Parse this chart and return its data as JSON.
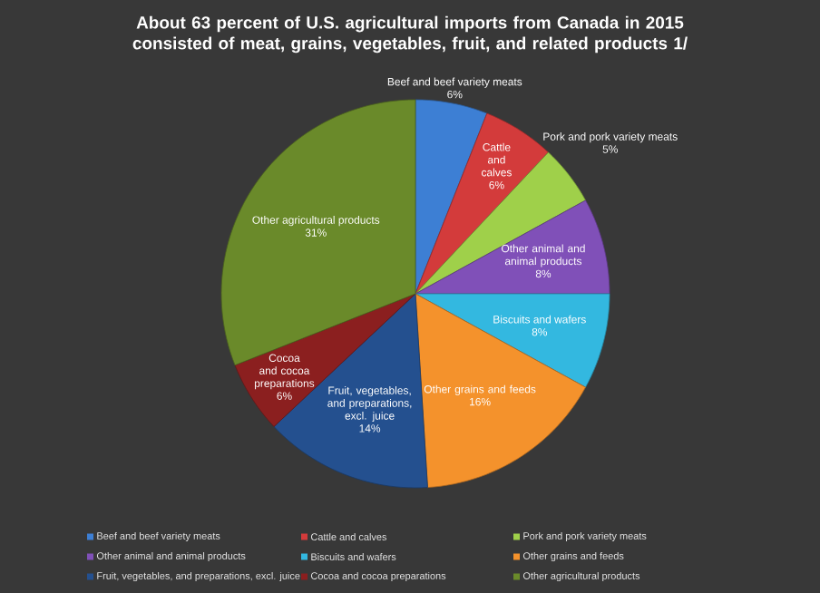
{
  "chart_data": {
    "type": "pie",
    "title": "About 63 percent of U.S. agricultural imports from Canada in 2015 consisted of meat, grains, vegetables, fruit, and related products 1/",
    "categories": [
      "Beef and beef variety meats",
      "Cattle and calves",
      "Pork and pork variety meats",
      "Other animal and animal products",
      "Biscuits and wafers",
      "Other grains and feeds",
      "Fruit, vegetables, and preparations, excl. juice",
      "Cocoa and cocoa preparations",
      "Other agricultural products"
    ],
    "values": [
      6,
      6,
      5,
      8,
      8,
      16,
      14,
      6,
      31
    ],
    "value_labels": [
      "6%",
      "6%",
      "5%",
      "8%",
      "8%",
      "16%",
      "14%",
      "6%",
      "31%"
    ],
    "colors": [
      "#3d7fd4",
      "#d33b3b",
      "#9fd04a",
      "#8050b8",
      "#33b8e0",
      "#f4922c",
      "#24508f",
      "#8b1f1f",
      "#6a8a2a"
    ],
    "legend": "bottom"
  }
}
